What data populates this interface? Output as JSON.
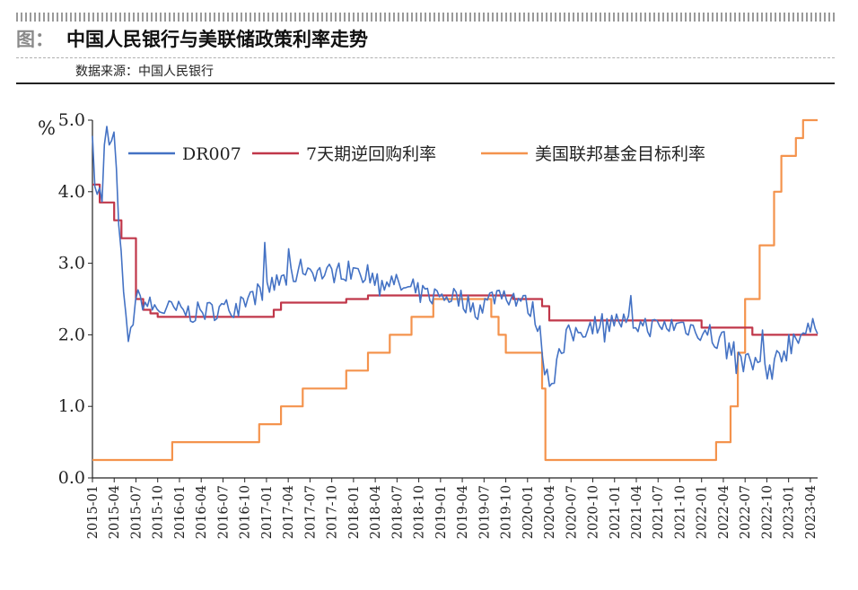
{
  "header": {
    "prefix": "图：",
    "title": "中国人民银行与美联储政策利率走势",
    "source": "数据来源：中国人民银行"
  },
  "chart_data": {
    "type": "line",
    "unit_label": "%",
    "ylim": [
      0,
      5
    ],
    "yticks": [
      {
        "v": 0,
        "label": "0.0"
      },
      {
        "v": 1,
        "label": "1.0"
      },
      {
        "v": 2,
        "label": "2.0"
      },
      {
        "v": 3,
        "label": "3.0"
      },
      {
        "v": 4,
        "label": "4.0"
      },
      {
        "v": 5,
        "label": "5.0"
      }
    ],
    "xticks": [
      "2015-01",
      "2015-04",
      "2015-07",
      "2015-10",
      "2016-01",
      "2016-04",
      "2016-07",
      "2016-10",
      "2017-01",
      "2017-04",
      "2017-07",
      "2017-10",
      "2018-01",
      "2018-04",
      "2018-07",
      "2018-10",
      "2019-01",
      "2019-04",
      "2019-07",
      "2019-10",
      "2020-01",
      "2020-04",
      "2020-07",
      "2020-10",
      "2021-01",
      "2021-04",
      "2021-07",
      "2021-10",
      "2022-01",
      "2022-04",
      "2022-07",
      "2022-10",
      "2023-01",
      "2023-04"
    ],
    "x_start": "2015-01",
    "x_end": "2023-05",
    "grid": false,
    "legend_position": "top",
    "series": [
      {
        "name": "DR007",
        "color": "#4472c4",
        "style": "noisy",
        "points": [
          [
            "2015-01",
            4.9
          ],
          [
            "2015-01-15",
            3.8
          ],
          [
            "2015-02",
            4.1
          ],
          [
            "2015-02-10",
            3.75
          ],
          [
            "2015-02-20",
            4.6
          ],
          [
            "2015-03",
            4.85
          ],
          [
            "2015-03-15",
            4.6
          ],
          [
            "2015-04",
            4.8
          ],
          [
            "2015-04-15",
            3.9
          ],
          [
            "2015-05",
            3.0
          ],
          [
            "2015-05-15",
            2.3
          ],
          [
            "2015-06",
            1.9
          ],
          [
            "2015-06-15",
            2.1
          ],
          [
            "2015-07",
            2.55
          ],
          [
            "2015-08",
            2.45
          ],
          [
            "2015-09",
            2.4
          ],
          [
            "2015-10",
            2.35
          ],
          [
            "2015-12",
            2.35
          ],
          [
            "2016-03",
            2.3
          ],
          [
            "2016-06",
            2.35
          ],
          [
            "2016-09",
            2.4
          ],
          [
            "2016-12",
            2.6
          ],
          [
            "2017-03",
            2.75
          ],
          [
            "2017-05",
            2.85
          ],
          [
            "2017-06",
            2.95
          ],
          [
            "2017-09",
            2.85
          ],
          [
            "2017-12",
            2.9
          ],
          [
            "2018-03",
            2.85
          ],
          [
            "2018-06",
            2.75
          ],
          [
            "2018-09",
            2.6
          ],
          [
            "2018-12",
            2.55
          ],
          [
            "2019-03",
            2.55
          ],
          [
            "2019-06",
            2.35
          ],
          [
            "2019-09",
            2.6
          ],
          [
            "2019-12",
            2.5
          ],
          [
            "2020-01",
            2.4
          ],
          [
            "2020-02",
            2.3
          ],
          [
            "2020-04",
            1.35
          ],
          [
            "2020-05",
            1.6
          ],
          [
            "2020-07",
            2.0
          ],
          [
            "2020-10",
            2.15
          ],
          [
            "2021-01",
            2.2
          ],
          [
            "2021-04",
            2.15
          ],
          [
            "2021-07",
            2.1
          ],
          [
            "2021-10",
            2.15
          ],
          [
            "2022-01",
            2.05
          ],
          [
            "2022-04",
            1.9
          ],
          [
            "2022-06",
            1.6
          ],
          [
            "2022-08",
            1.6
          ],
          [
            "2022-10",
            1.5
          ],
          [
            "2022-12",
            1.75
          ],
          [
            "2023-02",
            2.0
          ],
          [
            "2023-04",
            2.05
          ],
          [
            "2023-05",
            2.15
          ]
        ]
      },
      {
        "name": "7天期逆回购利率",
        "color": "#c0374a",
        "style": "step",
        "points": [
          [
            "2015-01",
            4.1
          ],
          [
            "2015-02",
            3.85
          ],
          [
            "2015-03",
            3.85
          ],
          [
            "2015-04",
            3.6
          ],
          [
            "2015-05",
            3.35
          ],
          [
            "2015-07",
            2.5
          ],
          [
            "2015-08",
            2.35
          ],
          [
            "2015-09",
            2.3
          ],
          [
            "2015-10",
            2.25
          ],
          [
            "2017-02",
            2.35
          ],
          [
            "2017-03",
            2.45
          ],
          [
            "2017-12",
            2.5
          ],
          [
            "2018-03",
            2.55
          ],
          [
            "2019-11",
            2.5
          ],
          [
            "2020-03",
            2.4
          ],
          [
            "2020-04",
            2.2
          ],
          [
            "2022-01",
            2.1
          ],
          [
            "2022-08",
            2.0
          ],
          [
            "2023-05",
            2.0
          ]
        ]
      },
      {
        "name": "美国联邦基金目标利率",
        "color": "#f4934d",
        "style": "step",
        "points": [
          [
            "2015-01",
            0.25
          ],
          [
            "2015-12",
            0.5
          ],
          [
            "2016-12",
            0.75
          ],
          [
            "2017-03",
            1.0
          ],
          [
            "2017-06",
            1.25
          ],
          [
            "2017-12",
            1.5
          ],
          [
            "2018-03",
            1.75
          ],
          [
            "2018-06",
            2.0
          ],
          [
            "2018-09",
            2.25
          ],
          [
            "2018-12",
            2.5
          ],
          [
            "2019-08",
            2.25
          ],
          [
            "2019-09",
            2.0
          ],
          [
            "2019-10",
            1.75
          ],
          [
            "2020-03",
            1.25
          ],
          [
            "2020-03-15",
            0.25
          ],
          [
            "2022-03",
            0.5
          ],
          [
            "2022-05",
            1.0
          ],
          [
            "2022-06",
            1.75
          ],
          [
            "2022-07",
            2.5
          ],
          [
            "2022-09",
            3.25
          ],
          [
            "2022-11",
            4.0
          ],
          [
            "2022-12",
            4.5
          ],
          [
            "2023-02",
            4.75
          ],
          [
            "2023-03",
            5.0
          ],
          [
            "2023-05",
            5.0
          ]
        ]
      }
    ]
  }
}
